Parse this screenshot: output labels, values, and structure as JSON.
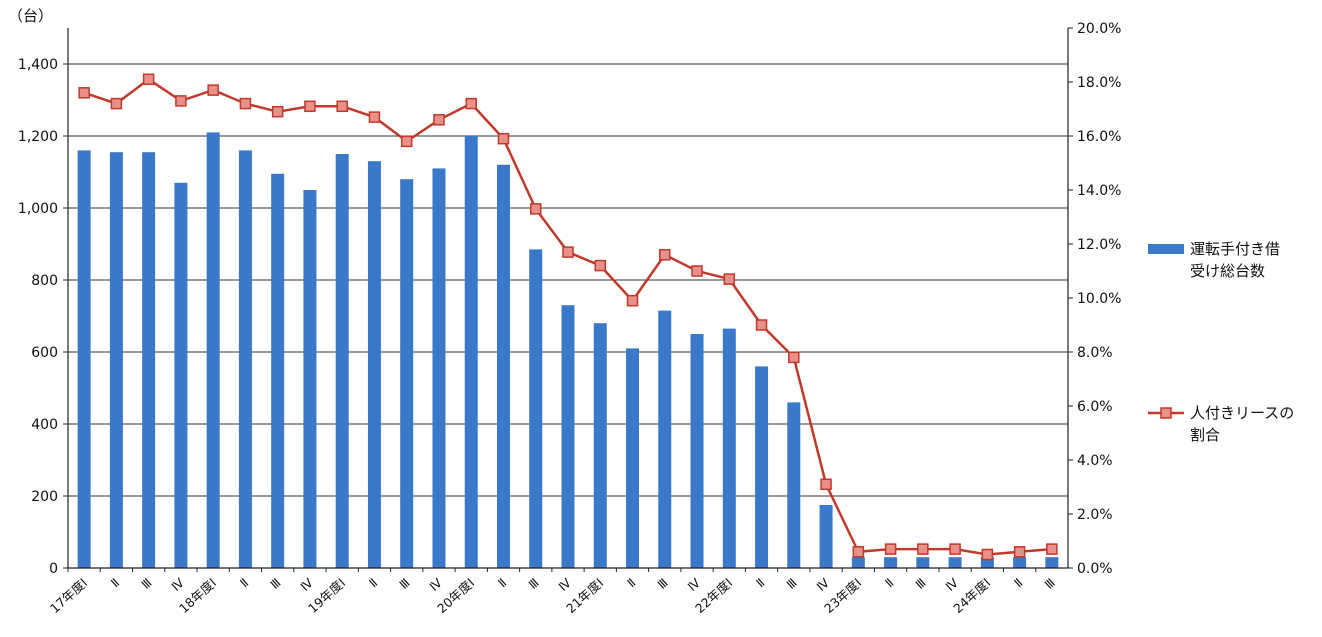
{
  "chart_data": {
    "type": "bar",
    "y_unit_label": "（台）",
    "categories": [
      "17年度Ⅰ",
      "Ⅱ",
      "Ⅲ",
      "Ⅳ",
      "18年度Ⅰ",
      "Ⅱ",
      "Ⅲ",
      "Ⅳ",
      "19年度Ⅰ",
      "Ⅱ",
      "Ⅲ",
      "Ⅳ",
      "20年度Ⅰ",
      "Ⅱ",
      "Ⅲ",
      "Ⅳ",
      "21年度Ⅰ",
      "Ⅱ",
      "Ⅲ",
      "Ⅳ",
      "22年度Ⅰ",
      "Ⅱ",
      "Ⅲ",
      "Ⅳ",
      "23年度Ⅰ",
      "Ⅱ",
      "Ⅲ",
      "Ⅳ",
      "24年度Ⅰ",
      "Ⅱ",
      "Ⅲ"
    ],
    "ylim": [
      0,
      1500
    ],
    "y_ticks": [
      "0",
      "200",
      "400",
      "600",
      "800",
      "1,000",
      "1,200",
      "1,400"
    ],
    "y2lim": [
      0,
      20
    ],
    "y2_ticks": [
      "0.0%",
      "2.0%",
      "4.0%",
      "6.0%",
      "8.0%",
      "10.0%",
      "12.0%",
      "14.0%",
      "16.0%",
      "18.0%",
      "20.0%"
    ],
    "grid": true,
    "legend_position": "right",
    "series": [
      {
        "name": "運転手付き借\n受け総台数",
        "legend_lines": [
          "運転手付き借",
          "受け総台数"
        ],
        "type": "bar",
        "axis": "left",
        "color": "#3a78c9",
        "values": [
          1160,
          1155,
          1155,
          1070,
          1210,
          1160,
          1095,
          1050,
          1150,
          1130,
          1080,
          1110,
          1200,
          1120,
          885,
          730,
          680,
          610,
          715,
          650,
          665,
          560,
          460,
          175,
          30,
          30,
          30,
          30,
          30,
          30,
          30
        ]
      },
      {
        "name": "人付きリースの\n割合",
        "legend_lines": [
          "人付きリースの",
          "割合"
        ],
        "type": "line",
        "axis": "right",
        "color": "#c0392b",
        "marker_color": "#e8908a",
        "values": [
          17.6,
          17.2,
          18.1,
          17.3,
          17.7,
          17.2,
          16.9,
          17.1,
          17.1,
          16.7,
          15.8,
          16.6,
          17.2,
          15.9,
          13.3,
          11.7,
          11.2,
          9.9,
          11.6,
          11.0,
          10.7,
          9.0,
          7.8,
          3.1,
          0.6,
          0.7,
          0.7,
          0.7,
          0.5,
          0.6,
          0.7
        ]
      }
    ]
  }
}
